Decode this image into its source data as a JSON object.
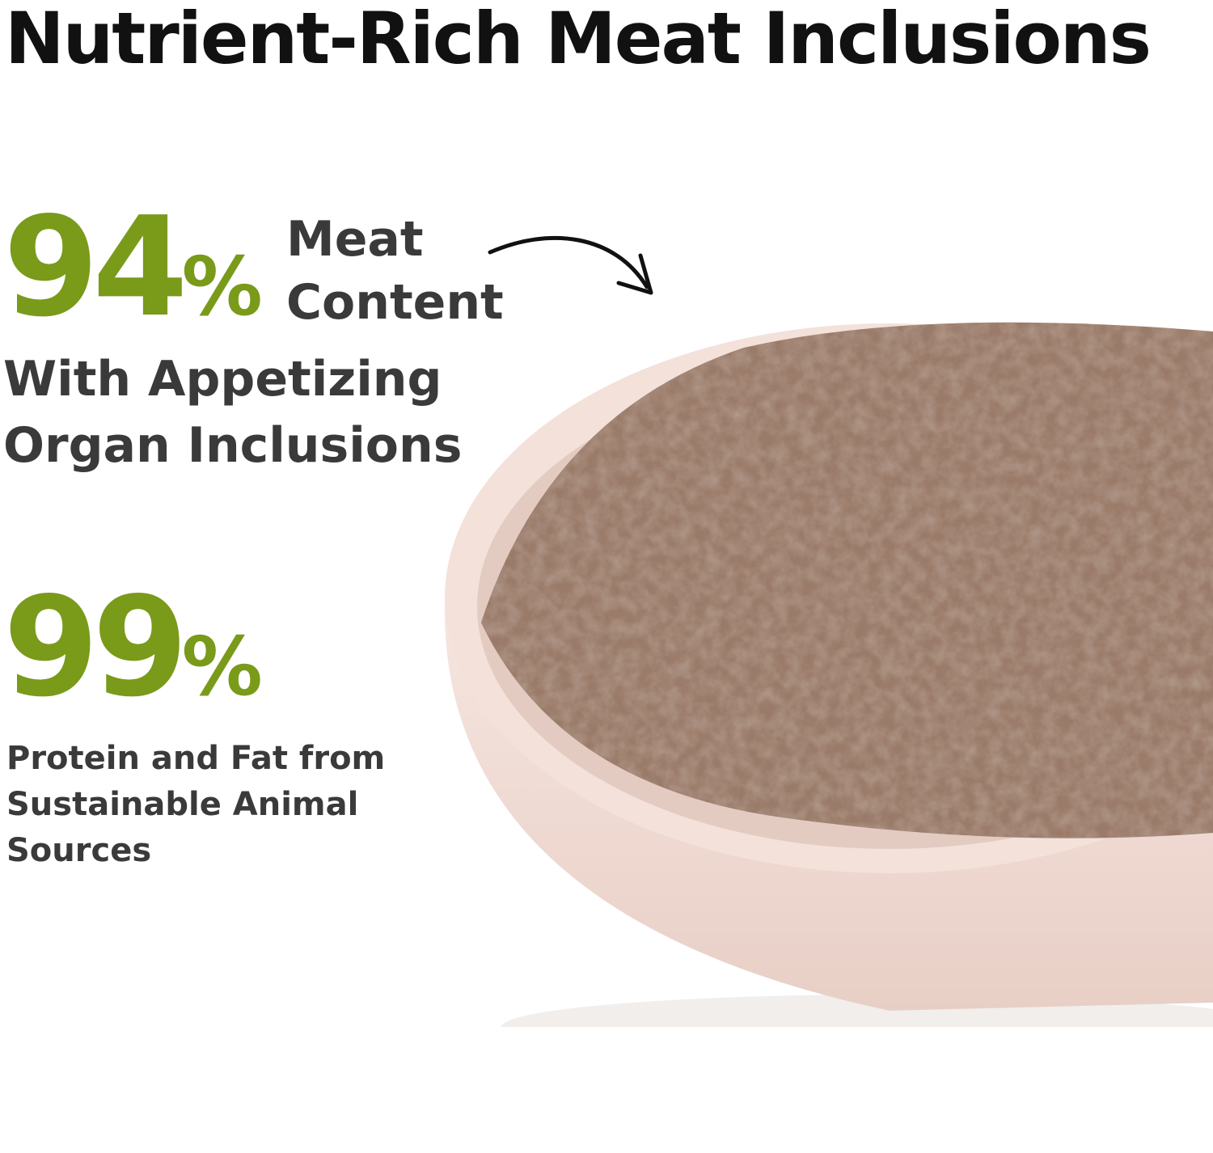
{
  "title": "Nutrient-Rich Meat Inclusions",
  "stat1": {
    "value": "94",
    "unit": "%",
    "label_line1": "Meat",
    "label_line2": "Content",
    "sub_line1": "With Appetizing",
    "sub_line2": "Organ Inclusions"
  },
  "stat2": {
    "value": "99",
    "unit": "%",
    "desc_line1": "Protein and Fat from",
    "desc_line2": "Sustainable Animal",
    "desc_line3": "Sources"
  },
  "colors": {
    "accent_green": "#7a9a1a",
    "text_dark": "#3a3a3a",
    "bowl": "#f2ddd6",
    "food": "#9a7a68"
  },
  "icons": {
    "arrow": "curved-arrow-icon"
  }
}
